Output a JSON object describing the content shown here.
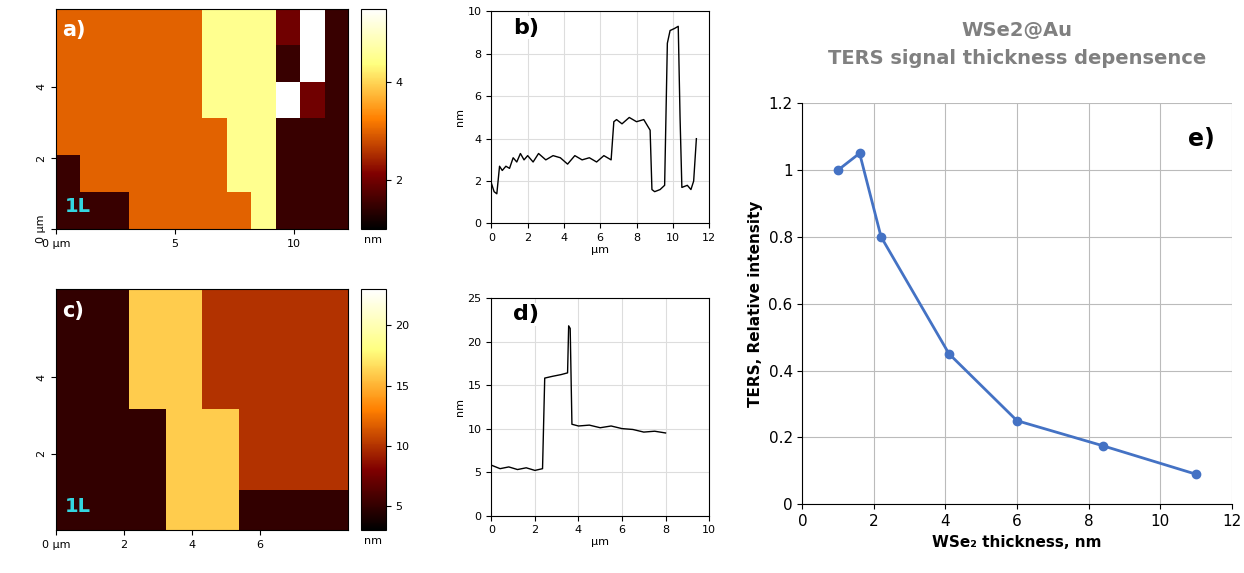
{
  "chart_data": [
    {
      "type": "heatmap",
      "annotations": [
        "a)",
        "1L"
      ],
      "xlim": [
        0,
        12.3
      ],
      "ylim": [
        0,
        6.2
      ],
      "xticks": [
        {
          "value": 0,
          "label": "0 µm"
        },
        5,
        10
      ],
      "yticks": [
        {
          "value": 0,
          "label": "0 µm"
        },
        2,
        4
      ],
      "cells": [
        [
          3,
          3,
          3,
          3,
          3,
          3,
          4.5,
          4.5,
          4.5,
          2,
          6,
          1.5
        ],
        [
          3,
          3,
          3,
          3,
          3,
          3,
          4.5,
          4.5,
          4.5,
          1.5,
          6,
          1.5
        ],
        [
          3,
          3,
          3,
          3,
          3,
          3,
          4.5,
          4.5,
          4.5,
          6,
          2,
          1.5
        ],
        [
          3,
          3,
          3,
          3,
          3,
          3,
          3,
          4.5,
          4.5,
          1.5,
          1.5,
          1.5
        ],
        [
          1.5,
          3,
          3,
          3,
          3,
          3,
          3,
          4.5,
          4.5,
          1.5,
          1.5,
          1.5
        ],
        [
          1.5,
          1.5,
          1.5,
          3,
          3,
          3,
          3,
          3,
          4.5,
          1.5,
          1.5,
          1.5
        ]
      ],
      "colorbar": {
        "lim": [
          1,
          5.5
        ],
        "ticks": [
          2,
          4
        ],
        "label": "nm"
      }
    },
    {
      "type": "line",
      "annotations": [
        "b)"
      ],
      "x_label": "µm",
      "y_label": "nm",
      "color": "#000000",
      "grid": true,
      "xlim": [
        0,
        12
      ],
      "ylim": [
        0,
        10
      ],
      "xticks": [
        0,
        2,
        4,
        6,
        8,
        10,
        12
      ],
      "yticks": [
        0,
        2,
        4,
        6,
        8,
        10
      ],
      "x": [
        0,
        0.15,
        0.3,
        0.45,
        0.6,
        0.8,
        1.0,
        1.2,
        1.4,
        1.6,
        1.8,
        2.0,
        2.3,
        2.6,
        3.0,
        3.4,
        3.8,
        4.2,
        4.6,
        5.0,
        5.4,
        5.8,
        6.2,
        6.6,
        6.75,
        6.9,
        7.2,
        7.6,
        8.0,
        8.4,
        8.75,
        8.85,
        9.0,
        9.3,
        9.55,
        9.7,
        9.85,
        10.1,
        10.3,
        10.4,
        10.5,
        10.8,
        11.0,
        11.15,
        11.3
      ],
      "values": [
        1.9,
        1.5,
        1.4,
        2.7,
        2.5,
        2.7,
        2.6,
        3.1,
        2.9,
        3.3,
        3.0,
        3.2,
        2.9,
        3.3,
        3.0,
        3.2,
        3.1,
        2.8,
        3.2,
        3.0,
        3.1,
        2.9,
        3.2,
        3.0,
        4.8,
        4.9,
        4.7,
        5.0,
        4.8,
        4.9,
        4.4,
        1.6,
        1.5,
        1.6,
        1.8,
        8.5,
        9.1,
        9.2,
        9.3,
        5.0,
        1.7,
        1.8,
        1.6,
        2.0,
        4.0
      ]
    },
    {
      "type": "heatmap",
      "annotations": [
        "c)",
        "1L"
      ],
      "xlim": [
        0,
        8.6
      ],
      "ylim": [
        0,
        6.3
      ],
      "xticks": [
        {
          "value": 0,
          "label": "0 µm"
        },
        2,
        4,
        6
      ],
      "yticks": [
        2,
        4
      ],
      "cells": [
        [
          5,
          5,
          16,
          16,
          10,
          10,
          10,
          10
        ],
        [
          5,
          5,
          16,
          16,
          10,
          10,
          10,
          10
        ],
        [
          5,
          5,
          16,
          16,
          10,
          10,
          10,
          10
        ],
        [
          5,
          5,
          5,
          16,
          16,
          10,
          10,
          10
        ],
        [
          5,
          5,
          5,
          16,
          16,
          10,
          10,
          10
        ],
        [
          5,
          5,
          5,
          16,
          16,
          5,
          5,
          5
        ]
      ],
      "colorbar": {
        "lim": [
          3,
          23
        ],
        "ticks": [
          5,
          10,
          15,
          20
        ],
        "label": "nm"
      }
    },
    {
      "type": "line",
      "annotations": [
        "d)"
      ],
      "x_label": "µm",
      "y_label": "nm",
      "color": "#000000",
      "grid": true,
      "xlim": [
        0,
        10
      ],
      "ylim": [
        0,
        25
      ],
      "xticks": [
        0,
        2,
        4,
        6,
        8,
        10
      ],
      "yticks": [
        0,
        5,
        10,
        15,
        20,
        25
      ],
      "x": [
        0,
        0.4,
        0.8,
        1.2,
        1.6,
        2.0,
        2.35,
        2.45,
        2.8,
        3.2,
        3.5,
        3.55,
        3.62,
        3.7,
        4.0,
        4.5,
        5.0,
        5.5,
        6.0,
        6.5,
        7.0,
        7.5,
        8.0
      ],
      "values": [
        5.8,
        5.4,
        5.6,
        5.3,
        5.5,
        5.2,
        5.4,
        15.8,
        16.0,
        16.2,
        16.4,
        21.8,
        21.5,
        10.5,
        10.3,
        10.4,
        10.1,
        10.3,
        10.0,
        9.9,
        9.6,
        9.7,
        9.5
      ]
    },
    {
      "type": "line",
      "title": "WSe2@Au\nTERS signal thickness depensence",
      "annotations": [
        "e)"
      ],
      "x_label": "WSe₂ thickness, nm",
      "y_label": "TERS, Relative intensity",
      "color": "#4472c4",
      "marker": "o",
      "grid": true,
      "xlim": [
        0,
        12
      ],
      "ylim": [
        0,
        1.2
      ],
      "xticks": [
        0,
        2,
        4,
        6,
        8,
        10,
        12
      ],
      "yticks": [
        0,
        0.2,
        0.4,
        0.6,
        0.8,
        1,
        1.2
      ],
      "x": [
        1.0,
        1.6,
        2.2,
        4.1,
        6.0,
        8.4,
        11.0
      ],
      "values": [
        1.0,
        1.05,
        0.8,
        0.45,
        0.25,
        0.175,
        0.09
      ]
    }
  ]
}
